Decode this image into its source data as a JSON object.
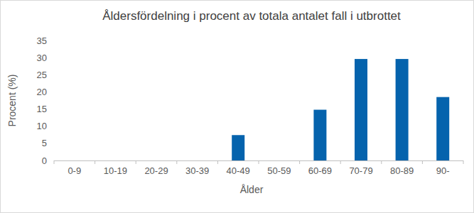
{
  "chart_data": {
    "type": "bar",
    "title": "Åldersfördelning i procent av totala antalet fall i utbrottet",
    "x_label": "Ålder",
    "y_label": "Procent (%)",
    "categories": [
      "0-9",
      "10-19",
      "20-29",
      "30-39",
      "40-49",
      "50-59",
      "60-69",
      "70-79",
      "80-89",
      "90-"
    ],
    "values": [
      0,
      0,
      0,
      0,
      7.4,
      0,
      14.8,
      29.6,
      29.6,
      18.5
    ],
    "color": "#0563ad",
    "ylim": [
      0,
      35
    ],
    "yticks": [
      0,
      5,
      10,
      15,
      20,
      25,
      30,
      35
    ],
    "grid": false
  }
}
